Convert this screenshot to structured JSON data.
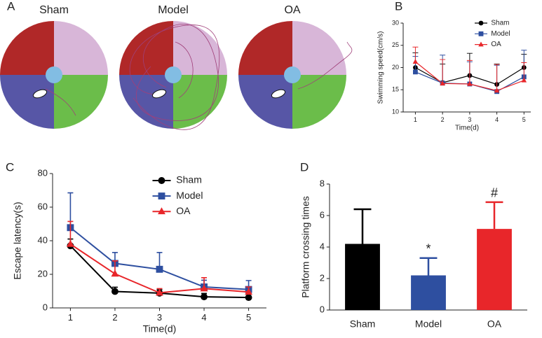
{
  "chart_data": [
    {
      "type": "maze",
      "label": "A",
      "titles": [
        "Sham",
        "Model",
        "OA"
      ]
    },
    {
      "type": "line",
      "label": "B",
      "xlabel": "Time(d)",
      "ylabel": "Swimming speed(cm/s)",
      "x": [
        1,
        2,
        3,
        4,
        5
      ],
      "xlim": [
        0.55,
        5.25
      ],
      "xticks": [
        1,
        2,
        3,
        4,
        5
      ],
      "ylim": [
        10,
        30
      ],
      "yticks": [
        10,
        15,
        20,
        25,
        30
      ],
      "legend": "upper right",
      "series": [
        {
          "name": "Sham",
          "color": "#000000",
          "marker": "circle",
          "values": [
            20,
            16.6,
            18.2,
            16.2,
            20
          ],
          "errors": [
            3.3,
            4.2,
            5,
            4.6,
            3
          ]
        },
        {
          "name": "Model",
          "color": "#2e4fa0",
          "marker": "square",
          "values": [
            19,
            16.5,
            16.3,
            14.6,
            17.9
          ],
          "errors": [
            3.5,
            6.3,
            5,
            5.9,
            6
          ]
        },
        {
          "name": "OA",
          "color": "#e8262a",
          "marker": "triangle",
          "values": [
            21.3,
            16.4,
            16.3,
            14.8,
            17.1
          ],
          "errors": [
            3.3,
            5.4,
            5.3,
            5.9,
            4
          ]
        }
      ]
    },
    {
      "type": "line",
      "label": "C",
      "xlabel": "Time(d)",
      "ylabel": "Escape latency(s)",
      "x": [
        1,
        2,
        3,
        4,
        5
      ],
      "xlim": [
        0.6,
        5.4
      ],
      "xticks": [
        1,
        2,
        3,
        4,
        5
      ],
      "ylim": [
        0,
        80
      ],
      "yticks": [
        0,
        20,
        40,
        60,
        80
      ],
      "legend": "upper center",
      "series": [
        {
          "name": "Sham",
          "color": "#000000",
          "marker": "circle",
          "values": [
            37,
            9.8,
            8.8,
            6.6,
            6.2
          ],
          "errors": [
            4,
            2.5,
            2,
            2,
            2
          ]
        },
        {
          "name": "Model",
          "color": "#2e4fa0",
          "marker": "square",
          "values": [
            47.8,
            26.5,
            23,
            12.5,
            11
          ],
          "errors": [
            20.7,
            6.5,
            10,
            4,
            5.3
          ]
        },
        {
          "name": "OA",
          "color": "#e8262a",
          "marker": "triangle",
          "values": [
            38,
            20.3,
            9,
            11.5,
            9.5
          ],
          "errors": [
            13.5,
            7.7,
            2.5,
            6.5,
            3
          ]
        }
      ]
    },
    {
      "type": "bar",
      "label": "D",
      "ylabel": "Platform crossing times",
      "categories": [
        "Sham",
        "Model",
        "OA"
      ],
      "values": [
        4.2,
        2.2,
        5.15
      ],
      "errors": [
        2.2,
        1.1,
        1.7
      ],
      "colors": [
        "#000000",
        "#2e4fa0",
        "#e8262a"
      ],
      "ylim": [
        0,
        8
      ],
      "yticks": [
        0,
        2,
        4,
        6,
        8
      ],
      "annotations": [
        {
          "text": "*",
          "x": "Model"
        },
        {
          "text": "#",
          "x": "OA"
        }
      ]
    }
  ]
}
